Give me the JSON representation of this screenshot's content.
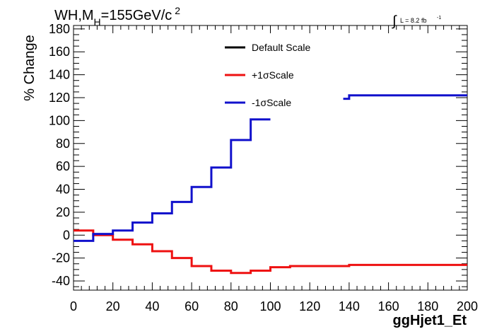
{
  "title": {
    "prefix": "WH,M",
    "subscript": "H",
    "value": "=155GeV/c",
    "superscript": "2"
  },
  "luminosity": {
    "integral_symbol": "∫",
    "text": "L = 8.2 fb",
    "superscript": "-1"
  },
  "chart_data": {
    "type": "line",
    "xlabel": "ggHjet1_Et",
    "ylabel": "% Change",
    "xlim": [
      0,
      200
    ],
    "ylim": [
      -48,
      183
    ],
    "xticks": [
      0,
      20,
      40,
      60,
      80,
      100,
      120,
      140,
      160,
      180,
      200
    ],
    "yticks": [
      -40,
      -20,
      0,
      20,
      40,
      60,
      80,
      100,
      120,
      140,
      160,
      180
    ],
    "grid": false,
    "legend_position": "top-center",
    "legend": [
      {
        "label": "Default Scale",
        "color": "#000000"
      },
      {
        "label": "+1σScale",
        "color": "#ee1111"
      },
      {
        "label": "-1σScale",
        "color": "#1111cc"
      }
    ],
    "series": [
      {
        "name": "Default Scale",
        "color": "#000000",
        "bin_edges": [],
        "values": []
      },
      {
        "name": "+1σScale",
        "color": "#ee1111",
        "bin_edges": [
          0,
          10,
          20,
          30,
          40,
          50,
          60,
          70,
          80,
          90,
          100,
          110,
          140,
          200
        ],
        "values": [
          4,
          0,
          -4,
          -8,
          -14,
          -20,
          -27,
          -31,
          -33,
          -31,
          -28,
          -27,
          -26
        ]
      },
      {
        "name": "-1σScale",
        "color": "#1111cc",
        "segments": [
          {
            "bin_edges": [
              0,
              10,
              20,
              30,
              40,
              50,
              60,
              70,
              80,
              90,
              100
            ],
            "values": [
              -5,
              1,
              4,
              11,
              19,
              29,
              42,
              59,
              83,
              101
            ]
          },
          {
            "bin_edges": [
              137,
              140,
              200
            ],
            "values": [
              119,
              122
            ]
          }
        ]
      }
    ]
  }
}
